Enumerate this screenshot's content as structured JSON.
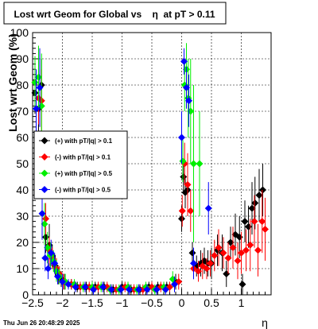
{
  "title": "Lost wrt Geom for Global vs    η  at pT > 0.11",
  "timestamp": "Thu Jun 26 20:48:29 2025",
  "chart_data": {
    "type": "scatter",
    "xlabel": "η",
    "ylabel": "Lost wrt Geom (%)",
    "xlim": [
      -2.5,
      1.5
    ],
    "ylim": [
      0,
      100
    ],
    "grid": true,
    "legend_position": "left",
    "x_ticks": [
      -2.5,
      -2,
      -1.5,
      -1,
      -0.5,
      0,
      0.5,
      1
    ],
    "x_tick_labels": [
      "−2.5",
      "−2",
      "−1.5",
      "−1",
      "−0.5",
      "0",
      "0.5",
      "1"
    ],
    "y_ticks": [
      0,
      10,
      20,
      30,
      40,
      50,
      60,
      70,
      80,
      90,
      100
    ],
    "y_tick_labels": [
      "0",
      "10",
      "20",
      "30",
      "40",
      "50",
      "60",
      "70",
      "80",
      "90",
      "100"
    ],
    "series": [
      {
        "name": "(+) with pT/|q| > 0.1",
        "color": "#000000",
        "points": [
          [
            -2.46,
            77,
            8
          ],
          [
            -2.4,
            71,
            12
          ],
          [
            -2.35,
            80,
            10
          ],
          [
            -2.28,
            22,
            6
          ],
          [
            -2.22,
            19,
            8
          ],
          [
            -2.17,
            15,
            4
          ],
          [
            -2.12,
            11,
            4
          ],
          [
            -2.07,
            7,
            3
          ],
          [
            -2.02,
            6,
            3
          ],
          [
            -1.97,
            5,
            3
          ],
          [
            -1.85,
            4,
            2
          ],
          [
            -1.75,
            3,
            2
          ],
          [
            -1.6,
            3,
            2
          ],
          [
            -1.45,
            3,
            2
          ],
          [
            -1.3,
            3,
            2
          ],
          [
            -1.15,
            2,
            2
          ],
          [
            -1.0,
            3,
            2
          ],
          [
            -0.85,
            2,
            2
          ],
          [
            -0.7,
            2,
            2
          ],
          [
            -0.55,
            3,
            2
          ],
          [
            -0.4,
            3,
            2
          ],
          [
            -0.25,
            3,
            2
          ],
          [
            -0.1,
            5,
            3
          ],
          [
            0.0,
            29,
            5
          ],
          [
            0.03,
            45,
            6
          ],
          [
            0.06,
            39,
            6
          ],
          [
            0.1,
            40,
            10
          ],
          [
            0.18,
            16,
            4
          ],
          [
            0.25,
            11,
            4
          ],
          [
            0.32,
            12,
            5
          ],
          [
            0.38,
            13,
            5
          ],
          [
            0.44,
            12,
            5
          ],
          [
            0.5,
            12,
            6
          ],
          [
            0.6,
            17,
            6
          ],
          [
            0.68,
            16,
            7
          ],
          [
            0.75,
            8,
            5
          ],
          [
            0.82,
            20,
            6
          ],
          [
            0.9,
            23,
            8
          ],
          [
            0.97,
            22,
            8
          ],
          [
            1.02,
            4,
            4
          ],
          [
            1.06,
            28,
            8
          ],
          [
            1.12,
            26,
            8
          ],
          [
            1.18,
            33,
            10
          ],
          [
            1.23,
            35,
            10
          ],
          [
            1.3,
            38,
            10
          ],
          [
            1.36,
            40,
            10
          ]
        ]
      },
      {
        "name": "(-) with pT/|q| > 0.1",
        "color": "#ff0000",
        "points": [
          [
            -2.46,
            81,
            10
          ],
          [
            -2.4,
            75,
            10
          ],
          [
            -2.35,
            74,
            12
          ],
          [
            -2.28,
            29,
            6
          ],
          [
            -2.22,
            17,
            5
          ],
          [
            -2.17,
            14,
            4
          ],
          [
            -2.1,
            10,
            4
          ],
          [
            -2.05,
            8,
            3
          ],
          [
            -1.98,
            5,
            3
          ],
          [
            -1.85,
            4,
            2
          ],
          [
            -1.7,
            3,
            2
          ],
          [
            -1.55,
            3,
            2
          ],
          [
            -1.4,
            3,
            2
          ],
          [
            -1.25,
            3,
            2
          ],
          [
            -1.1,
            2,
            2
          ],
          [
            -0.95,
            3,
            2
          ],
          [
            -0.8,
            2,
            2
          ],
          [
            -0.65,
            2,
            2
          ],
          [
            -0.5,
            3,
            2
          ],
          [
            -0.35,
            3,
            2
          ],
          [
            -0.2,
            3,
            2
          ],
          [
            -0.05,
            5,
            3
          ],
          [
            0.01,
            32,
            6
          ],
          [
            0.05,
            50,
            8
          ],
          [
            0.1,
            42,
            12
          ],
          [
            0.15,
            32,
            8
          ],
          [
            0.2,
            10,
            4
          ],
          [
            0.28,
            9,
            4
          ],
          [
            0.35,
            11,
            5
          ],
          [
            0.42,
            10,
            4
          ],
          [
            0.48,
            12,
            5
          ],
          [
            0.55,
            15,
            6
          ],
          [
            0.62,
            18,
            7
          ],
          [
            0.7,
            16,
            6
          ],
          [
            0.78,
            14,
            6
          ],
          [
            0.86,
            18,
            8
          ],
          [
            0.94,
            13,
            7
          ],
          [
            1.0,
            16,
            8
          ],
          [
            1.08,
            17,
            8
          ],
          [
            1.15,
            19,
            10
          ],
          [
            1.22,
            28,
            10
          ],
          [
            1.28,
            17,
            10
          ],
          [
            1.35,
            28,
            12
          ],
          [
            1.4,
            25,
            12
          ]
        ]
      },
      {
        "name": "(+) with pT/|q| > 0.5",
        "color": "#00ee00",
        "points": [
          [
            -2.46,
            81,
            10
          ],
          [
            -2.4,
            83,
            12
          ],
          [
            -2.35,
            72,
            20
          ],
          [
            -2.3,
            27,
            8
          ],
          [
            -2.25,
            18,
            6
          ],
          [
            -2.2,
            15,
            5
          ],
          [
            -2.15,
            13,
            4
          ],
          [
            -2.1,
            9,
            4
          ],
          [
            -2.05,
            7,
            3
          ],
          [
            -1.95,
            5,
            3
          ],
          [
            -1.8,
            4,
            2
          ],
          [
            -1.65,
            3,
            2
          ],
          [
            -1.5,
            3,
            2
          ],
          [
            -1.35,
            3,
            2
          ],
          [
            -1.2,
            2,
            2
          ],
          [
            -1.05,
            2,
            2
          ],
          [
            -0.9,
            3,
            2
          ],
          [
            -0.75,
            2,
            2
          ],
          [
            -0.6,
            3,
            2
          ],
          [
            -0.45,
            2,
            2
          ],
          [
            -0.3,
            3,
            2
          ],
          [
            -0.15,
            6,
            3
          ],
          [
            0.02,
            51,
            8
          ],
          [
            0.05,
            80,
            10
          ],
          [
            0.08,
            86,
            10
          ],
          [
            0.11,
            75,
            15
          ],
          [
            0.15,
            70,
            20
          ],
          [
            0.2,
            50,
            30
          ],
          [
            0.3,
            50,
            20
          ]
        ]
      },
      {
        "name": "(-) with pT/|q| > 0.5",
        "color": "#0000ff",
        "points": [
          [
            -2.44,
            71,
            15
          ],
          [
            -2.38,
            79,
            15
          ],
          [
            -2.34,
            31,
            10
          ],
          [
            -2.29,
            14,
            5
          ],
          [
            -2.24,
            10,
            4
          ],
          [
            -2.19,
            16,
            5
          ],
          [
            -2.13,
            12,
            4
          ],
          [
            -2.08,
            7,
            3
          ],
          [
            -2.0,
            5,
            3
          ],
          [
            -1.9,
            4,
            2
          ],
          [
            -1.78,
            3,
            2
          ],
          [
            -1.62,
            3,
            2
          ],
          [
            -1.48,
            2,
            2
          ],
          [
            -1.32,
            3,
            2
          ],
          [
            -1.18,
            2,
            2
          ],
          [
            -1.02,
            2,
            2
          ],
          [
            -0.88,
            2,
            2
          ],
          [
            -0.72,
            2,
            2
          ],
          [
            -0.58,
            2,
            2
          ],
          [
            -0.42,
            2,
            2
          ],
          [
            -0.27,
            2,
            2
          ],
          [
            -0.12,
            4,
            3
          ],
          [
            0.0,
            60,
            10
          ],
          [
            0.04,
            89,
            5
          ],
          [
            0.08,
            79,
            8
          ],
          [
            0.12,
            74,
            10
          ],
          [
            0.2,
            12,
            6
          ],
          [
            0.45,
            33,
            10
          ]
        ]
      }
    ]
  }
}
